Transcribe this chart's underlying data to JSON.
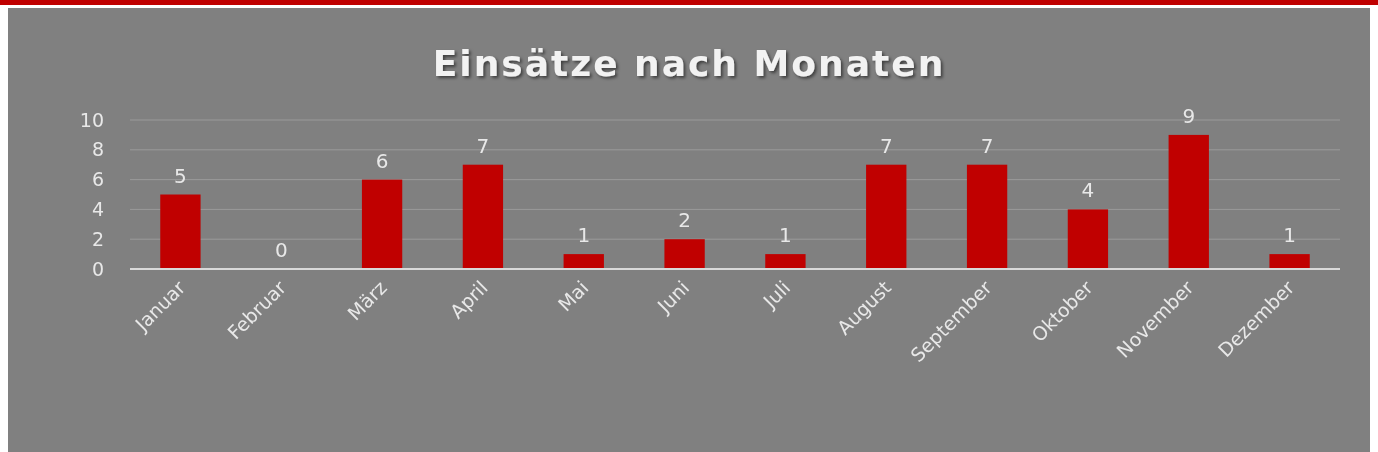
{
  "chart_data": {
    "type": "bar",
    "title": "Einsätze nach Monaten",
    "categories": [
      "Januar",
      "Februar",
      "März",
      "April",
      "Mai",
      "Juni",
      "Juli",
      "August",
      "September",
      "Oktober",
      "November",
      "Dezember"
    ],
    "values": [
      5,
      0,
      6,
      7,
      1,
      2,
      1,
      7,
      7,
      4,
      9,
      1
    ],
    "color": "#c00000",
    "ylim": [
      0,
      10
    ],
    "yticks": [
      0,
      2,
      4,
      6,
      8,
      10
    ],
    "grid": "y",
    "data_labels": true
  }
}
